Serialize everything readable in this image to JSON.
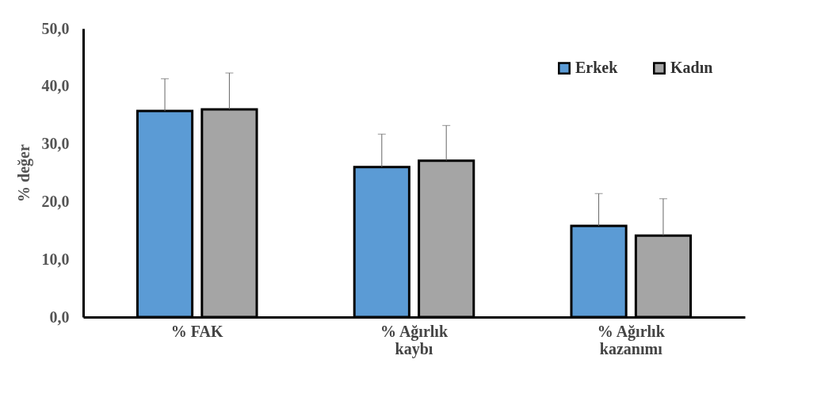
{
  "chart_data": {
    "type": "bar",
    "ylabel": "% değer",
    "categories": [
      "% FAK",
      "% Ağırlık kaybı",
      "% Ağırlık kazanımı"
    ],
    "series": [
      {
        "name": "Erkek",
        "color": "#5b9bd5",
        "values": [
          35.7,
          26.0,
          15.8
        ],
        "errors": [
          [
            35.7,
            41.3
          ],
          [
            26.0,
            31.7
          ],
          [
            15.8,
            21.4
          ]
        ]
      },
      {
        "name": "Kadın",
        "color": "#a5a5a5",
        "values": [
          36.0,
          27.1,
          14.1
        ],
        "errors": [
          [
            36.0,
            42.3
          ],
          [
            27.1,
            33.2
          ],
          [
            14.1,
            20.5
          ]
        ]
      }
    ],
    "ylim": [
      0,
      50
    ],
    "yticks": [
      {
        "value": 0,
        "label": "0,0"
      },
      {
        "value": 10,
        "label": "10,0"
      },
      {
        "value": 20,
        "label": "20,0"
      },
      {
        "value": 30,
        "label": "30,0"
      },
      {
        "value": 40,
        "label": "40,0"
      },
      {
        "value": 50,
        "label": "50,0"
      }
    ],
    "grid": false,
    "legend": "top right"
  }
}
